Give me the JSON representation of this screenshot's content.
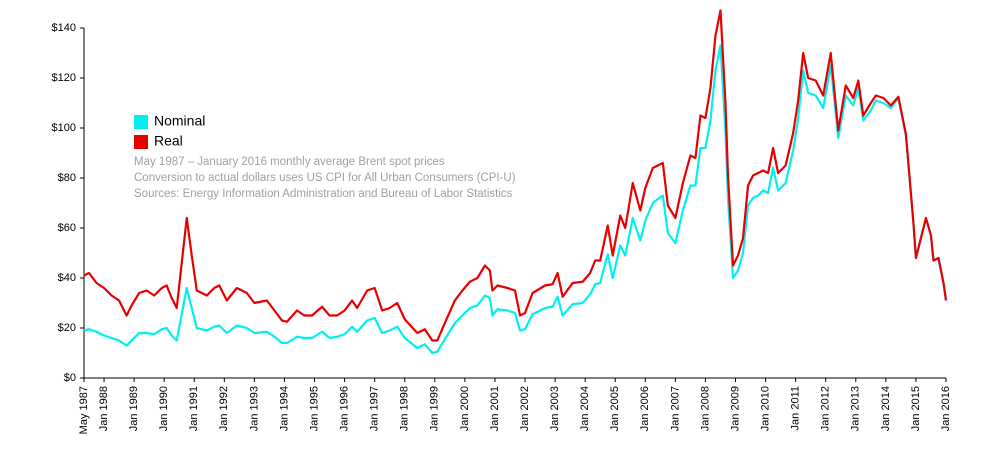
{
  "chart_data": {
    "type": "line",
    "notes": [
      "May 1987 – January 2016 monthly average Brent spot prices",
      "Conversion to actual dollars uses US CPI for All Urban Consumers (CPI-U)",
      "Sources: Energy Information Administration and Bureau of Labor Statistics"
    ],
    "x": [
      "1987-05",
      "1987-07",
      "1987-10",
      "1988-01",
      "1988-04",
      "1988-07",
      "1988-10",
      "1988-12",
      "1989-03",
      "1989-06",
      "1989-09",
      "1989-12",
      "1990-02",
      "1990-04",
      "1990-06",
      "1990-10",
      "1990-12",
      "1991-02",
      "1991-06",
      "1991-09",
      "1991-11",
      "1992-02",
      "1992-06",
      "1992-10",
      "1993-01",
      "1993-06",
      "1993-09",
      "1993-12",
      "1994-02",
      "1994-06",
      "1994-09",
      "1994-12",
      "1995-04",
      "1995-07",
      "1995-10",
      "1996-01",
      "1996-04",
      "1996-06",
      "1996-10",
      "1997-01",
      "1997-04",
      "1997-07",
      "1997-10",
      "1998-01",
      "1998-06",
      "1998-09",
      "1998-12",
      "1999-02",
      "1999-05",
      "1999-09",
      "1999-12",
      "2000-03",
      "2000-06",
      "2000-09",
      "2000-11",
      "2000-12",
      "2001-02",
      "2001-06",
      "2001-09",
      "2001-11",
      "2002-01",
      "2002-04",
      "2002-09",
      "2002-12",
      "2003-02",
      "2003-04",
      "2003-08",
      "2003-12",
      "2004-03",
      "2004-05",
      "2004-07",
      "2004-10",
      "2004-12",
      "2005-03",
      "2005-05",
      "2005-08",
      "2005-11",
      "2006-01",
      "2006-04",
      "2006-08",
      "2006-10",
      "2007-01",
      "2007-04",
      "2007-07",
      "2007-09",
      "2007-11",
      "2008-01",
      "2008-03",
      "2008-05",
      "2008-07",
      "2008-09",
      "2008-10",
      "2008-12",
      "2009-02",
      "2009-04",
      "2009-06",
      "2009-08",
      "2009-10",
      "2009-12",
      "2010-02",
      "2010-04",
      "2010-06",
      "2010-09",
      "2010-12",
      "2011-02",
      "2011-04",
      "2011-06",
      "2011-09",
      "2011-12",
      "2012-03",
      "2012-06",
      "2012-09",
      "2012-12",
      "2013-02",
      "2013-04",
      "2013-07",
      "2013-09",
      "2013-12",
      "2014-03",
      "2014-06",
      "2014-09",
      "2014-12",
      "2015-01",
      "2015-03",
      "2015-05",
      "2015-07",
      "2015-08",
      "2015-10",
      "2015-12",
      "2016-01"
    ],
    "series": [
      {
        "name": "Nominal",
        "color": "#00f0f0",
        "values": [
          19,
          19.5,
          18.5,
          17,
          16,
          15,
          13,
          15,
          18,
          18,
          17.5,
          19.5,
          20,
          17,
          15,
          36,
          28,
          20,
          19,
          20.5,
          21,
          18,
          21,
          20,
          18,
          18.5,
          16.5,
          14,
          14,
          16.5,
          16,
          16,
          18.5,
          16,
          16.5,
          17.5,
          20.5,
          18.5,
          23,
          24,
          18,
          19,
          20.5,
          16,
          12,
          13.5,
          10,
          10.5,
          15.5,
          22,
          25,
          28,
          29,
          33,
          32,
          25,
          27.5,
          27,
          26,
          19,
          19.5,
          25.5,
          28,
          28.5,
          32.5,
          25,
          29.5,
          30,
          33.5,
          37.5,
          38,
          49.5,
          40,
          53,
          49,
          64,
          55,
          63,
          70,
          73,
          58,
          54,
          67,
          77,
          77,
          92,
          92,
          103,
          123,
          133,
          98,
          72,
          40,
          43,
          50,
          69,
          72,
          73,
          75,
          74,
          84,
          75,
          78,
          91,
          104,
          123,
          114,
          113,
          108,
          125,
          96,
          113,
          109,
          116,
          103,
          107,
          111,
          110,
          108,
          112,
          97,
          62,
          48,
          56,
          64,
          57,
          47,
          48,
          38,
          31
        ]
      },
      {
        "name": "Real",
        "color": "#e80000",
        "values": [
          41,
          42,
          38,
          36,
          33,
          31,
          25,
          29,
          34,
          35,
          33,
          36,
          37,
          32,
          28,
          64,
          49,
          35,
          33,
          36,
          37,
          31,
          36,
          34,
          30,
          31,
          27,
          23,
          22.5,
          27,
          25,
          25,
          28.5,
          25,
          25,
          27,
          31,
          28,
          35,
          36,
          27,
          28,
          30,
          23.5,
          18,
          19.5,
          15,
          15,
          22,
          31,
          35,
          38.5,
          40,
          45,
          43,
          35,
          37,
          36,
          35,
          25,
          26,
          34,
          37,
          37.5,
          42,
          32.5,
          38,
          38.5,
          42,
          47,
          47,
          61,
          49,
          65,
          60,
          78,
          67,
          76,
          84,
          86,
          69,
          64,
          78,
          89,
          88,
          105,
          104,
          116,
          137,
          147,
          110,
          81,
          45,
          49,
          56,
          77,
          81,
          82,
          83,
          82,
          92,
          82,
          85,
          98,
          111,
          130,
          120,
          119,
          113,
          130,
          99,
          117,
          112,
          119,
          105,
          110,
          113,
          112,
          109,
          112.5,
          97.5,
          62,
          48,
          56,
          64,
          57,
          47,
          48,
          38,
          31
        ]
      }
    ],
    "ylim": [
      0,
      140
    ],
    "yticks": [
      {
        "value": 0,
        "label": "$0"
      },
      {
        "value": 20,
        "label": "$20"
      },
      {
        "value": 40,
        "label": "$40"
      },
      {
        "value": 60,
        "label": "$60"
      },
      {
        "value": 80,
        "label": "$80"
      },
      {
        "value": 100,
        "label": "$100"
      },
      {
        "value": 120,
        "label": "$120"
      },
      {
        "value": 140,
        "label": "$140"
      }
    ],
    "xlim": [
      "1987-05",
      "2016-01"
    ],
    "xticks": [
      {
        "value": "1987-05",
        "label": "May 1987"
      },
      {
        "value": "1988-01",
        "label": "Jan 1988"
      },
      {
        "value": "1989-01",
        "label": "Jan 1989"
      },
      {
        "value": "1990-01",
        "label": "Jan 1990"
      },
      {
        "value": "1991-01",
        "label": "Jan 1991"
      },
      {
        "value": "1992-01",
        "label": "Jan 1992"
      },
      {
        "value": "1993-01",
        "label": "Jan 1993"
      },
      {
        "value": "1994-01",
        "label": "Jan 1994"
      },
      {
        "value": "1995-01",
        "label": "Jan 1995"
      },
      {
        "value": "1996-01",
        "label": "Jan 1996"
      },
      {
        "value": "1997-01",
        "label": "Jan 1997"
      },
      {
        "value": "1998-01",
        "label": "Jan 1998"
      },
      {
        "value": "1999-01",
        "label": "Jan 1999"
      },
      {
        "value": "2000-01",
        "label": "Jan 2000"
      },
      {
        "value": "2001-01",
        "label": "Jan 2001"
      },
      {
        "value": "2002-01",
        "label": "Jan 2002"
      },
      {
        "value": "2003-01",
        "label": "Jan 2003"
      },
      {
        "value": "2004-01",
        "label": "Jan 2004"
      },
      {
        "value": "2005-01",
        "label": "Jan 2005"
      },
      {
        "value": "2006-01",
        "label": "Jan 2006"
      },
      {
        "value": "2007-01",
        "label": "Jan 2007"
      },
      {
        "value": "2008-01",
        "label": "Jan 2008"
      },
      {
        "value": "2009-01",
        "label": "Jan 2009"
      },
      {
        "value": "2010-01",
        "label": "Jan 2010"
      },
      {
        "value": "2011-01",
        "label": "Jan 2011"
      },
      {
        "value": "2012-01",
        "label": "Jan 2012"
      },
      {
        "value": "2013-01",
        "label": "Jan 2013"
      },
      {
        "value": "2014-01",
        "label": "Jan 2014"
      },
      {
        "value": "2015-01",
        "label": "Jan 2015"
      },
      {
        "value": "2016-01",
        "label": "Jan 2016"
      }
    ],
    "legend": "upper-left"
  }
}
